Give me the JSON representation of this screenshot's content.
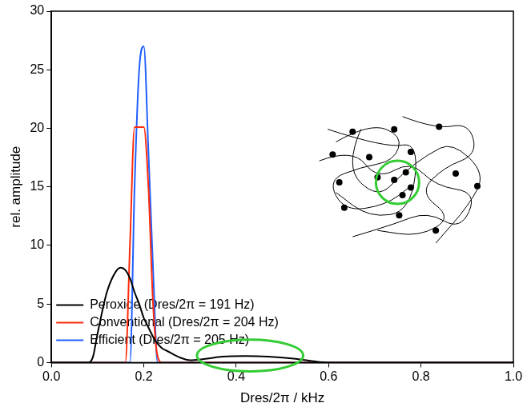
{
  "chart_data": {
    "type": "line",
    "x_label": "Dres/2π / kHz",
    "y_label": "rel. amplitude",
    "x": [
      0,
      0.05,
      0.08,
      0.09,
      0.1,
      0.12,
      0.14,
      0.15,
      0.16,
      0.17,
      0.18,
      0.19,
      0.2,
      0.21,
      0.22,
      0.23,
      0.24,
      0.25,
      0.28,
      0.3,
      0.33,
      0.37,
      0.42,
      0.47,
      0.52,
      0.56,
      0.6,
      0.8,
      1.0
    ],
    "series": [
      {
        "name": "Peroxide (Dres/2π = 191 Hz)",
        "color": "#000000",
        "values": [
          0,
          0,
          0,
          0.5,
          2.5,
          6,
          7.8,
          8.1,
          7.9,
          7.2,
          6,
          5,
          3.8,
          3,
          2.2,
          1.6,
          1.2,
          1.0,
          0.4,
          0.2,
          0.3,
          0.5,
          0.55,
          0.5,
          0.35,
          0.15,
          0,
          0,
          0
        ]
      },
      {
        "name": "Conventional (Dres/2π = 204 Hz)",
        "color": "#ff2a0a",
        "values": [
          0,
          0,
          0,
          0,
          0,
          0,
          0,
          0,
          0,
          10,
          20.1,
          20.1,
          20.1,
          15,
          5,
          0.5,
          0,
          0,
          0,
          0,
          0,
          0,
          0,
          0,
          0,
          0,
          0,
          0,
          0
        ]
      },
      {
        "name": "Efficient (Dres/2π = 205 Hz)",
        "color": "#1f5fff",
        "values": [
          0,
          0,
          0,
          0,
          0,
          0,
          0,
          0,
          0,
          0,
          15,
          25,
          27,
          18,
          8,
          0,
          0,
          0,
          0,
          0,
          0,
          0,
          0,
          0,
          0,
          0,
          0,
          0,
          0
        ]
      }
    ],
    "xlim": [
      0,
      1.0
    ],
    "ylim": [
      0,
      30
    ],
    "xticks": [
      {
        "value": 0,
        "label": "0.0"
      },
      {
        "value": 0.2,
        "label": "0.2"
      },
      {
        "value": 0.4,
        "label": "0.4"
      },
      {
        "value": 0.6,
        "label": "0.6"
      },
      {
        "value": 0.8,
        "label": "0.8"
      },
      {
        "value": 1.0,
        "label": "1.0"
      }
    ],
    "yticks": [
      0,
      5,
      10,
      15,
      20,
      25,
      30
    ],
    "legend": "upper right",
    "grid": false
  }
}
